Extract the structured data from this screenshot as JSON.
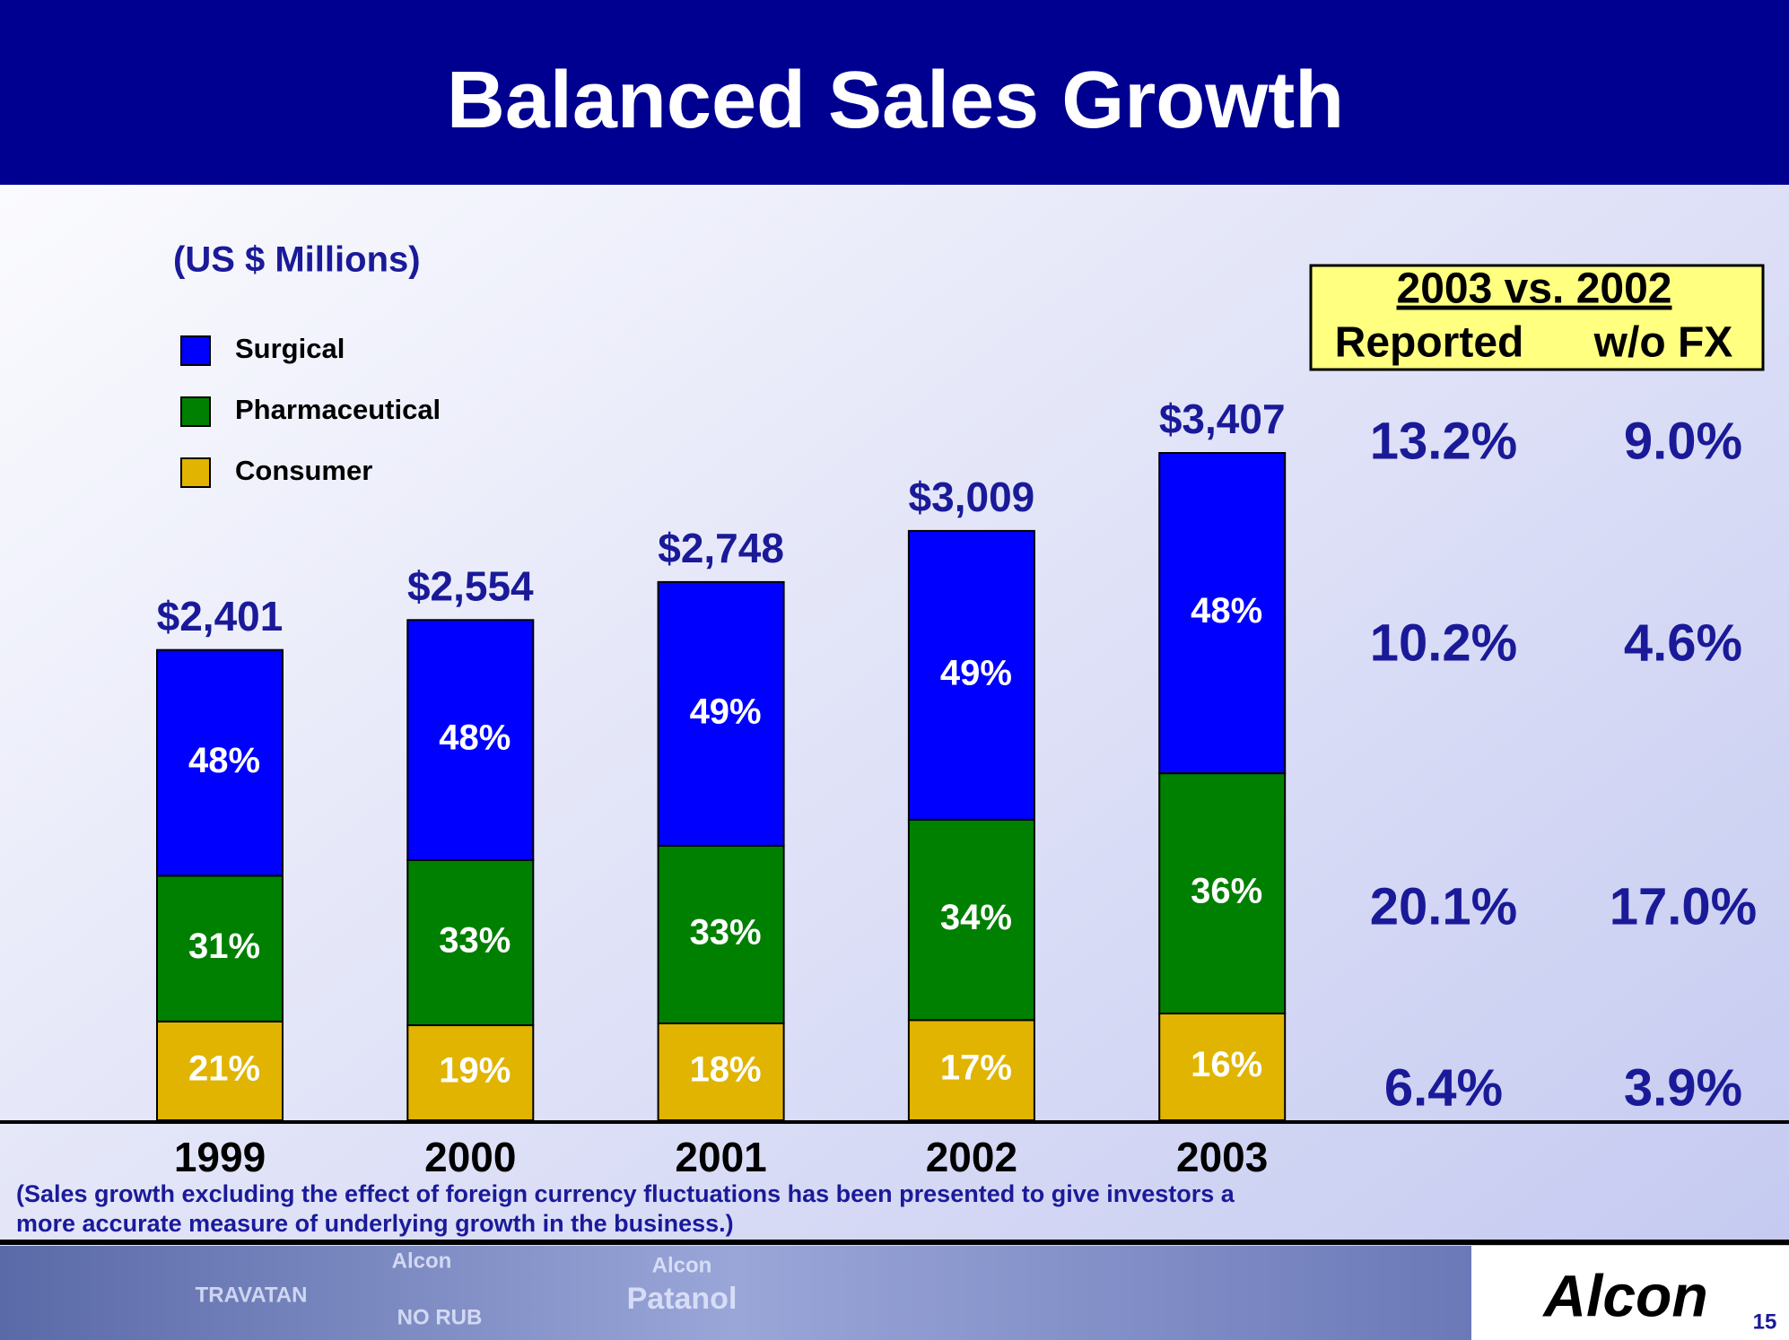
{
  "chart_data": {
    "type": "bar",
    "title": "Balanced Sales Growth",
    "subtitle": "(US $ Millions)",
    "categories": [
      "1999",
      "2000",
      "2001",
      "2002",
      "2003"
    ],
    "totals": [
      2401,
      2554,
      2748,
      3009,
      3407
    ],
    "total_labels": [
      "$2,401",
      "$2,554",
      "$2,748",
      "$3,009",
      "$3,407"
    ],
    "series": [
      {
        "name": "Surgical",
        "color": "#0000ff",
        "values": [
          48,
          48,
          49,
          49,
          48
        ],
        "value_labels": [
          "48%",
          "48%",
          "49%",
          "49%",
          "48%"
        ]
      },
      {
        "name": "Pharmaceutical",
        "color": "#008000",
        "values": [
          31,
          33,
          33,
          34,
          36
        ],
        "value_labels": [
          "31%",
          "33%",
          "33%",
          "34%",
          "36%"
        ]
      },
      {
        "name": "Consumer",
        "color": "#e0b400",
        "values": [
          21,
          19,
          18,
          17,
          16
        ],
        "value_labels": [
          "21%",
          "19%",
          "18%",
          "17%",
          "16%"
        ]
      }
    ],
    "growth_table": {
      "title": "2003 vs. 2002",
      "columns": [
        "Reported",
        "w/o FX"
      ],
      "rows": [
        [
          "13.2%",
          "9.0%"
        ],
        [
          "10.2%",
          "4.6%"
        ],
        [
          "20.1%",
          "17.0%"
        ],
        [
          "6.4%",
          "3.9%"
        ]
      ]
    },
    "footnote": [
      "(Sales growth excluding the effect of foreign currency fluctuations has been presented to give investors a",
      "more accurate measure of underlying growth in the business.)"
    ]
  },
  "footer": {
    "photo_labels": [
      "TRAVATAN",
      "Alcon",
      "NO RUB",
      "Alcon",
      "Patanol"
    ],
    "logo": "Alcon",
    "page_number": "15"
  }
}
